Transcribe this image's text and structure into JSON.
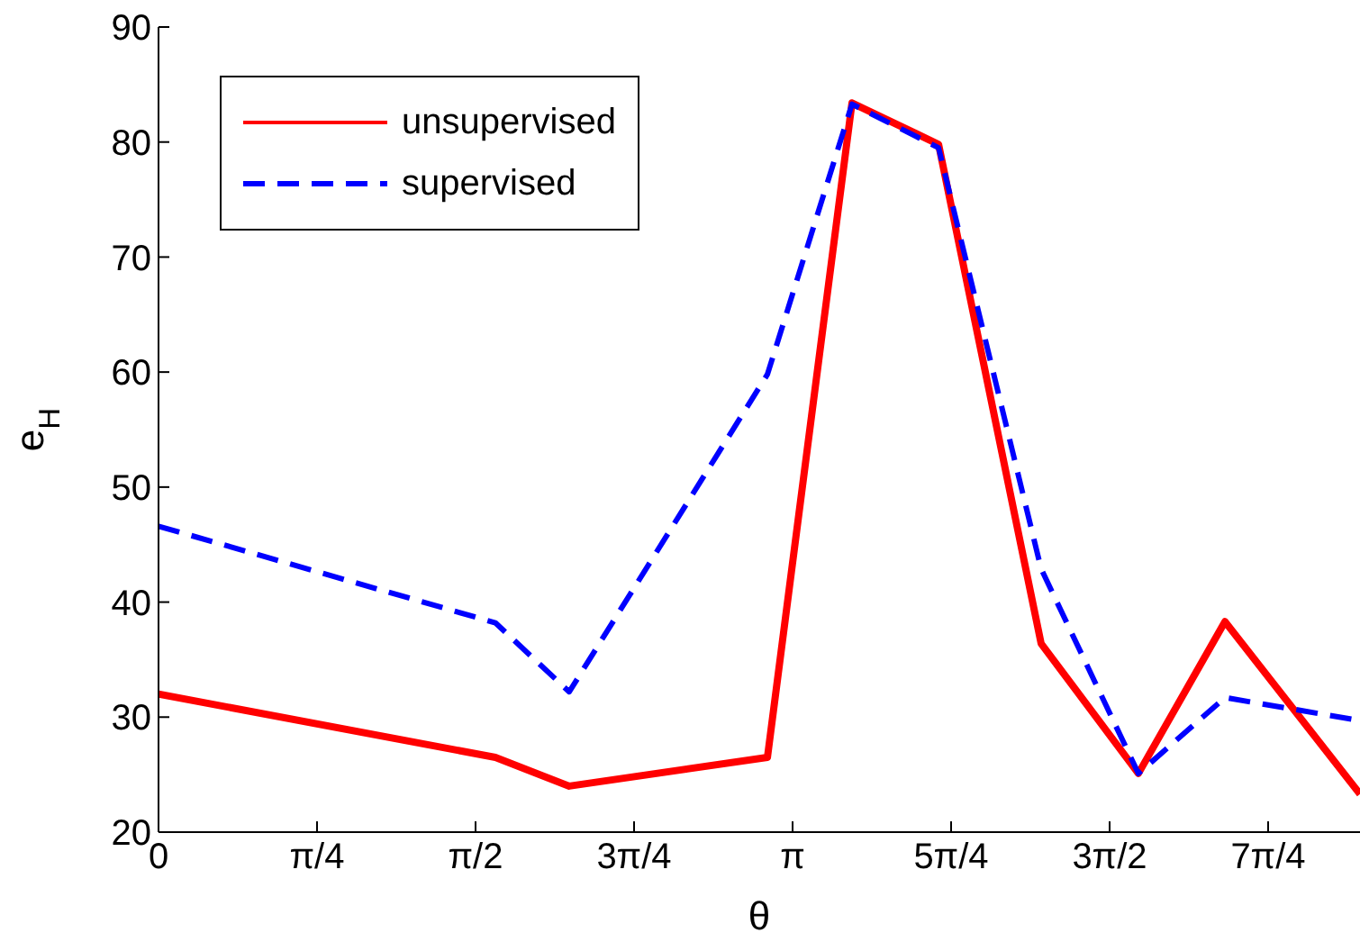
{
  "chart_data": {
    "type": "line",
    "xlabel": "θ",
    "ylabel": "e$_{H}$",
    "x": [
      0,
      1.669,
      2.035,
      3.017,
      3.436,
      3.865,
      4.373,
      4.855,
      5.284,
      5.953
    ],
    "series": [
      {
        "name": "unsupervised",
        "color": "#ff0000",
        "line_style": "solid",
        "values": [
          32,
          26.5,
          24,
          26.5,
          83.4,
          79.8,
          36.4,
          25.1,
          38.3,
          23.3
        ]
      },
      {
        "name": "supervised",
        "color": "#0000ff",
        "line_style": "dashed",
        "values": [
          46.6,
          38.2,
          32.2,
          59.8,
          83.3,
          79.5,
          42.9,
          25.1,
          31.7,
          29.7
        ]
      }
    ],
    "xlim": [
      0,
      5.953
    ],
    "xticks": [
      0,
      {
        "value": 0.7854,
        "label": "π/4"
      },
      {
        "value": 1.5708,
        "label": "π/2"
      },
      {
        "value": 2.3562,
        "label": "3π/4"
      },
      {
        "value": 3.1416,
        "label": "π"
      },
      {
        "value": 3.927,
        "label": "5π/4"
      },
      {
        "value": 4.7124,
        "label": "3π/2"
      },
      {
        "value": 5.4978,
        "label": "7π/4"
      }
    ],
    "ylim": [
      20,
      90
    ],
    "yticks": [
      20,
      30,
      40,
      50,
      60,
      70,
      80,
      90
    ],
    "grid": false,
    "legend": "top left",
    "marker": "none"
  }
}
